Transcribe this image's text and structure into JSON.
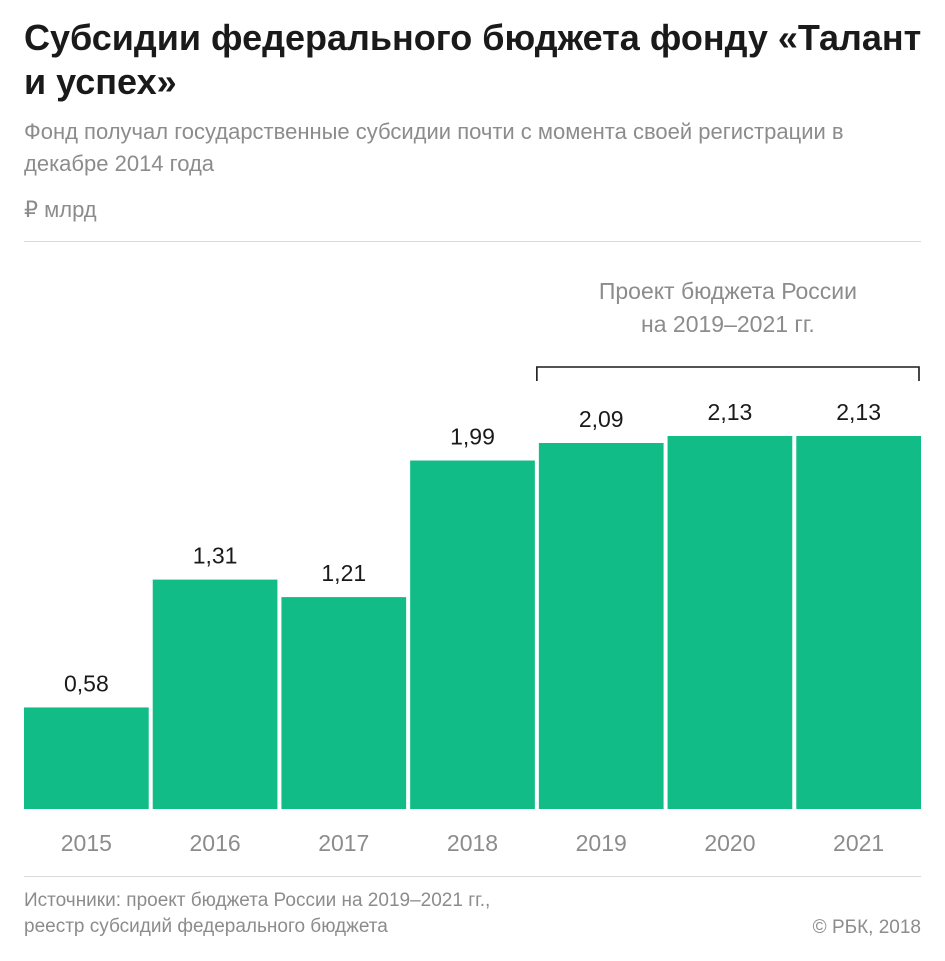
{
  "header": {
    "title": "Субсидии федерального бюджета фонду «Талант и успех»",
    "subtitle": "Фонд получал государственные субсидии почти с момента своей регистрации в декабре 2014 года",
    "unit": "₽ млрд"
  },
  "chart_data": {
    "type": "bar",
    "title": "Субсидии федерального бюджета фонду «Талант и успех»",
    "subtitle": "Фонд получал государственные субсидии почти с момента своей регистрации в декабре 2014 года",
    "ylabel": "₽ млрд",
    "xlabel": "",
    "categories": [
      "2015",
      "2016",
      "2017",
      "2018",
      "2019",
      "2020",
      "2021"
    ],
    "values": [
      0.58,
      1.31,
      1.21,
      1.99,
      2.09,
      2.13,
      2.13
    ],
    "value_labels": [
      "0,58",
      "1,31",
      "1,21",
      "1,99",
      "2,09",
      "2,13",
      "2,13"
    ],
    "ylim": [
      0,
      2.13
    ],
    "grid": false,
    "bar_color": "#12bc86",
    "annotation": {
      "lines": [
        "Проект бюджета России",
        "на 2019–2021 гг."
      ],
      "from_category": "2019",
      "to_category": "2021"
    }
  },
  "footer": {
    "sources_line1": "Источники: проект бюджета России на 2019–2021 гг.,",
    "sources_line2": "реестр субсидий федерального бюджета",
    "copyright": "© РБК, 2018"
  },
  "colors": {
    "bar": "#12bc86",
    "title": "#1a1a1a",
    "muted": "#8c8c8c",
    "rule": "#d9d9d9"
  }
}
